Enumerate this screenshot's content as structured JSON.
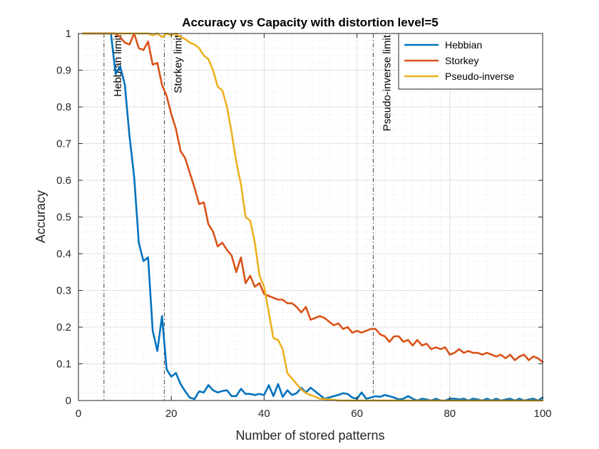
{
  "chart_data": {
    "type": "line",
    "title": "Accuracy vs Capacity with distortion level=5",
    "xlabel": "Number  of stored patterns",
    "ylabel": "Accuracy",
    "xlim": [
      0,
      100
    ],
    "ylim": [
      0,
      1
    ],
    "xticks": [
      "0",
      "20",
      "40",
      "60",
      "80",
      "100"
    ],
    "yticks": [
      "0",
      "0.1",
      "0.2",
      "0.3",
      "0.4",
      "0.5",
      "0.6",
      "0.7",
      "0.8",
      "0.9",
      "1"
    ],
    "grid": true,
    "minor_grid": true,
    "legend_position": "top-right",
    "series": [
      {
        "name": "Hebbian",
        "color": "#0072BD",
        "x": [
          1,
          2,
          3,
          4,
          5,
          6,
          7,
          8,
          9,
          10,
          11,
          12,
          13,
          14,
          15,
          16,
          17,
          18,
          19,
          20,
          21,
          22,
          23,
          24,
          25,
          26,
          27,
          28,
          29,
          30,
          31,
          32,
          33,
          34,
          35,
          36,
          37,
          38,
          39,
          40,
          41,
          42,
          43,
          44,
          45,
          46,
          47,
          48,
          49,
          50,
          51,
          52,
          53,
          54,
          55,
          56,
          57,
          58,
          59,
          60,
          61,
          62,
          63,
          64,
          65,
          66,
          67,
          68,
          69,
          70,
          71,
          72,
          73,
          74,
          75,
          76,
          77,
          78,
          79,
          80,
          81,
          82,
          83,
          84,
          85,
          86,
          87,
          88,
          89,
          90,
          91,
          92,
          93,
          94,
          95,
          96,
          97,
          98,
          99,
          100
        ],
        "y": [
          1,
          1,
          1,
          1,
          1,
          1,
          1,
          0.89,
          0.91,
          0.86,
          0.72,
          0.61,
          0.43,
          0.38,
          0.39,
          0.19,
          0.135,
          0.23,
          0.085,
          0.065,
          0.075,
          0.045,
          0.025,
          0.008,
          0.004,
          0.025,
          0.022,
          0.042,
          0.028,
          0.022,
          0.026,
          0.028,
          0.012,
          0.012,
          0.032,
          0.018,
          0.018,
          0.015,
          0.018,
          0.015,
          0.042,
          0.012,
          0.045,
          0.01,
          0.028,
          0.015,
          0.02,
          0.035,
          0.022,
          0.035,
          0.025,
          0.015,
          0.005,
          0.008,
          0.012,
          0.015,
          0.02,
          0.018,
          0.008,
          0.005,
          0.022,
          0.005,
          0.008,
          0.012,
          0.01,
          0.015,
          0.012,
          0.008,
          0.003,
          0.005,
          0.012,
          0.005,
          0,
          0.005,
          0.003,
          0,
          0.005,
          0,
          0,
          0.005,
          0.005,
          0.003,
          0.005,
          0,
          0.005,
          0.003,
          0,
          0.005,
          0,
          0.005,
          0,
          0.003,
          0.005,
          0,
          0.005,
          0,
          0.003,
          0.005,
          0,
          0.008
        ]
      },
      {
        "name": "Storkey",
        "color": "#D95319",
        "x": [
          1,
          2,
          3,
          4,
          5,
          6,
          7,
          8,
          9,
          10,
          11,
          12,
          13,
          14,
          15,
          16,
          17,
          18,
          19,
          20,
          21,
          22,
          23,
          24,
          25,
          26,
          27,
          28,
          29,
          30,
          31,
          32,
          33,
          34,
          35,
          36,
          37,
          38,
          39,
          40,
          41,
          42,
          43,
          44,
          45,
          46,
          47,
          48,
          49,
          50,
          51,
          52,
          53,
          54,
          55,
          56,
          57,
          58,
          59,
          60,
          61,
          62,
          63,
          64,
          65,
          66,
          67,
          68,
          69,
          70,
          71,
          72,
          73,
          74,
          75,
          76,
          77,
          78,
          79,
          80,
          81,
          82,
          83,
          84,
          85,
          86,
          87,
          88,
          89,
          90,
          91,
          92,
          93,
          94,
          95,
          96,
          97,
          98,
          99,
          100
        ],
        "y": [
          1,
          1,
          1,
          1,
          1,
          1,
          1,
          1,
          0.99,
          0.975,
          0.97,
          1,
          0.96,
          0.955,
          0.978,
          0.915,
          0.92,
          0.86,
          0.83,
          0.78,
          0.74,
          0.68,
          0.66,
          0.62,
          0.58,
          0.535,
          0.54,
          0.48,
          0.46,
          0.42,
          0.43,
          0.41,
          0.395,
          0.35,
          0.39,
          0.32,
          0.34,
          0.31,
          0.32,
          0.29,
          0.285,
          0.28,
          0.275,
          0.275,
          0.265,
          0.265,
          0.255,
          0.24,
          0.255,
          0.22,
          0.225,
          0.23,
          0.225,
          0.215,
          0.205,
          0.21,
          0.195,
          0.2,
          0.185,
          0.19,
          0.185,
          0.19,
          0.195,
          0.195,
          0.18,
          0.175,
          0.16,
          0.175,
          0.175,
          0.16,
          0.165,
          0.15,
          0.165,
          0.15,
          0.155,
          0.14,
          0.145,
          0.14,
          0.145,
          0.125,
          0.13,
          0.14,
          0.13,
          0.135,
          0.13,
          0.13,
          0.125,
          0.13,
          0.125,
          0.12,
          0.125,
          0.115,
          0.125,
          0.11,
          0.12,
          0.125,
          0.11,
          0.12,
          0.115,
          0.105
        ]
      },
      {
        "name": "Pseudo-inverse",
        "color": "#EDB120",
        "x": [
          1,
          2,
          3,
          4,
          5,
          6,
          7,
          8,
          9,
          10,
          11,
          12,
          13,
          14,
          15,
          16,
          17,
          18,
          19,
          20,
          21,
          22,
          23,
          24,
          25,
          26,
          27,
          28,
          29,
          30,
          31,
          32,
          33,
          34,
          35,
          36,
          37,
          38,
          39,
          40,
          41,
          42,
          43,
          44,
          45,
          46,
          47,
          48,
          49,
          50,
          51,
          52,
          53,
          54,
          55,
          56,
          57,
          58,
          59,
          60,
          61,
          62,
          63,
          64,
          65,
          66,
          67,
          68,
          69,
          70,
          71,
          72,
          73,
          74,
          75,
          76,
          77,
          78,
          79,
          80,
          81,
          82,
          83,
          84,
          85,
          86,
          87,
          88,
          89,
          90,
          91,
          92,
          93,
          94,
          95,
          96,
          97,
          98,
          99,
          100
        ],
        "y": [
          1,
          1,
          1,
          1,
          1,
          1,
          1,
          1,
          1,
          1,
          1,
          1,
          1,
          1,
          1,
          0.995,
          1,
          0.99,
          1,
          0.995,
          1,
          0.99,
          0.985,
          0.975,
          0.97,
          0.96,
          0.94,
          0.93,
          0.9,
          0.855,
          0.845,
          0.8,
          0.73,
          0.65,
          0.59,
          0.5,
          0.49,
          0.43,
          0.34,
          0.31,
          0.24,
          0.17,
          0.165,
          0.14,
          0.075,
          0.06,
          0.045,
          0.03,
          0.02,
          0.015,
          0.01,
          0.005,
          0.004,
          0.003,
          0.002,
          0,
          0,
          0,
          0,
          0,
          0,
          0,
          0,
          0,
          0,
          0,
          0,
          0,
          0,
          0,
          0,
          0,
          0,
          0,
          0,
          0,
          0,
          0,
          0,
          0,
          0,
          0,
          0,
          0,
          0,
          0,
          0,
          0,
          0,
          0,
          0,
          0,
          0,
          0,
          0,
          0,
          0,
          0,
          0,
          0
        ]
      }
    ],
    "vlines": [
      {
        "x": 5.5,
        "label": "Hebbian limit"
      },
      {
        "x": 18.5,
        "label": "Storkey limit"
      },
      {
        "x": 63.5,
        "label": "Pseudo-inverse limit"
      }
    ]
  }
}
